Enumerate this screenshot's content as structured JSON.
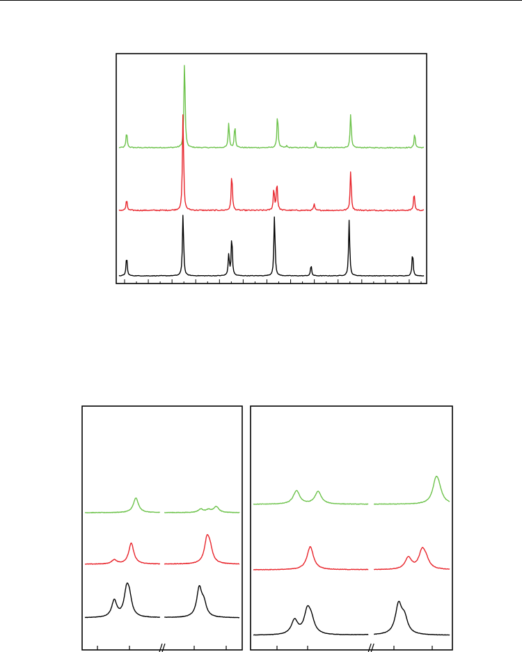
{
  "colors": {
    "top": "#6cc24a",
    "middle": "#e8232a",
    "bottom": "#000000",
    "frame": "#000000"
  },
  "chart_data": [
    {
      "type": "line",
      "panel": "main",
      "xlim": [
        0,
        100
      ],
      "axis_breaks": [],
      "x_ticks_count": 26,
      "series": [
        {
          "color": "green",
          "baseline": 0.0,
          "noise": 0.01,
          "peaks": [
            [
              2.5,
              0.18
            ],
            [
              21.5,
              1.0
            ],
            [
              36,
              0.28
            ],
            [
              38,
              0.25
            ],
            [
              52,
              0.38
            ],
            [
              55,
              0.02
            ],
            [
              64.5,
              0.06
            ],
            [
              76,
              0.38
            ],
            [
              97,
              0.16
            ]
          ]
        },
        {
          "color": "red",
          "baseline": 0.0,
          "noise": 0.012,
          "peaks": [
            [
              2.5,
              0.12
            ],
            [
              21,
              1.1
            ],
            [
              37,
              0.42
            ],
            [
              50.8,
              0.24
            ],
            [
              51.8,
              0.32
            ],
            [
              64,
              0.07
            ],
            [
              76,
              0.45
            ],
            [
              96.8,
              0.2
            ]
          ]
        },
        {
          "color": "black",
          "baseline": 0.0,
          "noise": 0.006,
          "peaks": [
            [
              2.5,
              0.22
            ],
            [
              21,
              0.7
            ],
            [
              36,
              0.24
            ],
            [
              37,
              0.44
            ],
            [
              51,
              0.68
            ],
            [
              63,
              0.12
            ],
            [
              75.5,
              0.62
            ],
            [
              96.3,
              0.26
            ]
          ]
        }
      ]
    },
    {
      "type": "line",
      "panel": "lower-left",
      "xlim": [
        0,
        100
      ],
      "axis_breaks": [
        50
      ],
      "series": [
        {
          "color": "green",
          "noise": 0.012,
          "peaks": [
            [
              33,
              0.35
            ],
            [
              75,
              0.08
            ],
            [
              85,
              0.14
            ],
            [
              80,
              0.06
            ]
          ]
        },
        {
          "color": "red",
          "noise": 0.012,
          "peaks": [
            [
              19,
              0.1
            ],
            [
              30,
              0.5
            ],
            [
              79,
              0.55
            ],
            [
              81,
              0.3
            ]
          ]
        },
        {
          "color": "black",
          "noise": 0.008,
          "peaks": [
            [
              19,
              0.4
            ],
            [
              27,
              0.58
            ],
            [
              28.8,
              0.38
            ],
            [
              74,
              0.68
            ],
            [
              77,
              0.3
            ]
          ]
        }
      ]
    },
    {
      "type": "line",
      "panel": "lower-right",
      "xlim": [
        0,
        100
      ],
      "axis_breaks": [
        60
      ],
      "series": [
        {
          "color": "green",
          "noise": 0.012,
          "peaks": [
            [
              22,
              0.32
            ],
            [
              33,
              0.3
            ],
            [
              93,
              0.5
            ],
            [
              94.5,
              0.25
            ]
          ]
        },
        {
          "color": "red",
          "noise": 0.012,
          "peaks": [
            [
              29,
              0.55
            ],
            [
              79,
              0.28
            ],
            [
              86,
              0.42
            ],
            [
              88,
              0.18
            ]
          ]
        },
        {
          "color": "black",
          "noise": 0.008,
          "peaks": [
            [
              21,
              0.34
            ],
            [
              27.5,
              0.52
            ],
            [
              29.5,
              0.3
            ],
            [
              74,
              0.7
            ],
            [
              77,
              0.36
            ]
          ]
        }
      ]
    }
  ]
}
